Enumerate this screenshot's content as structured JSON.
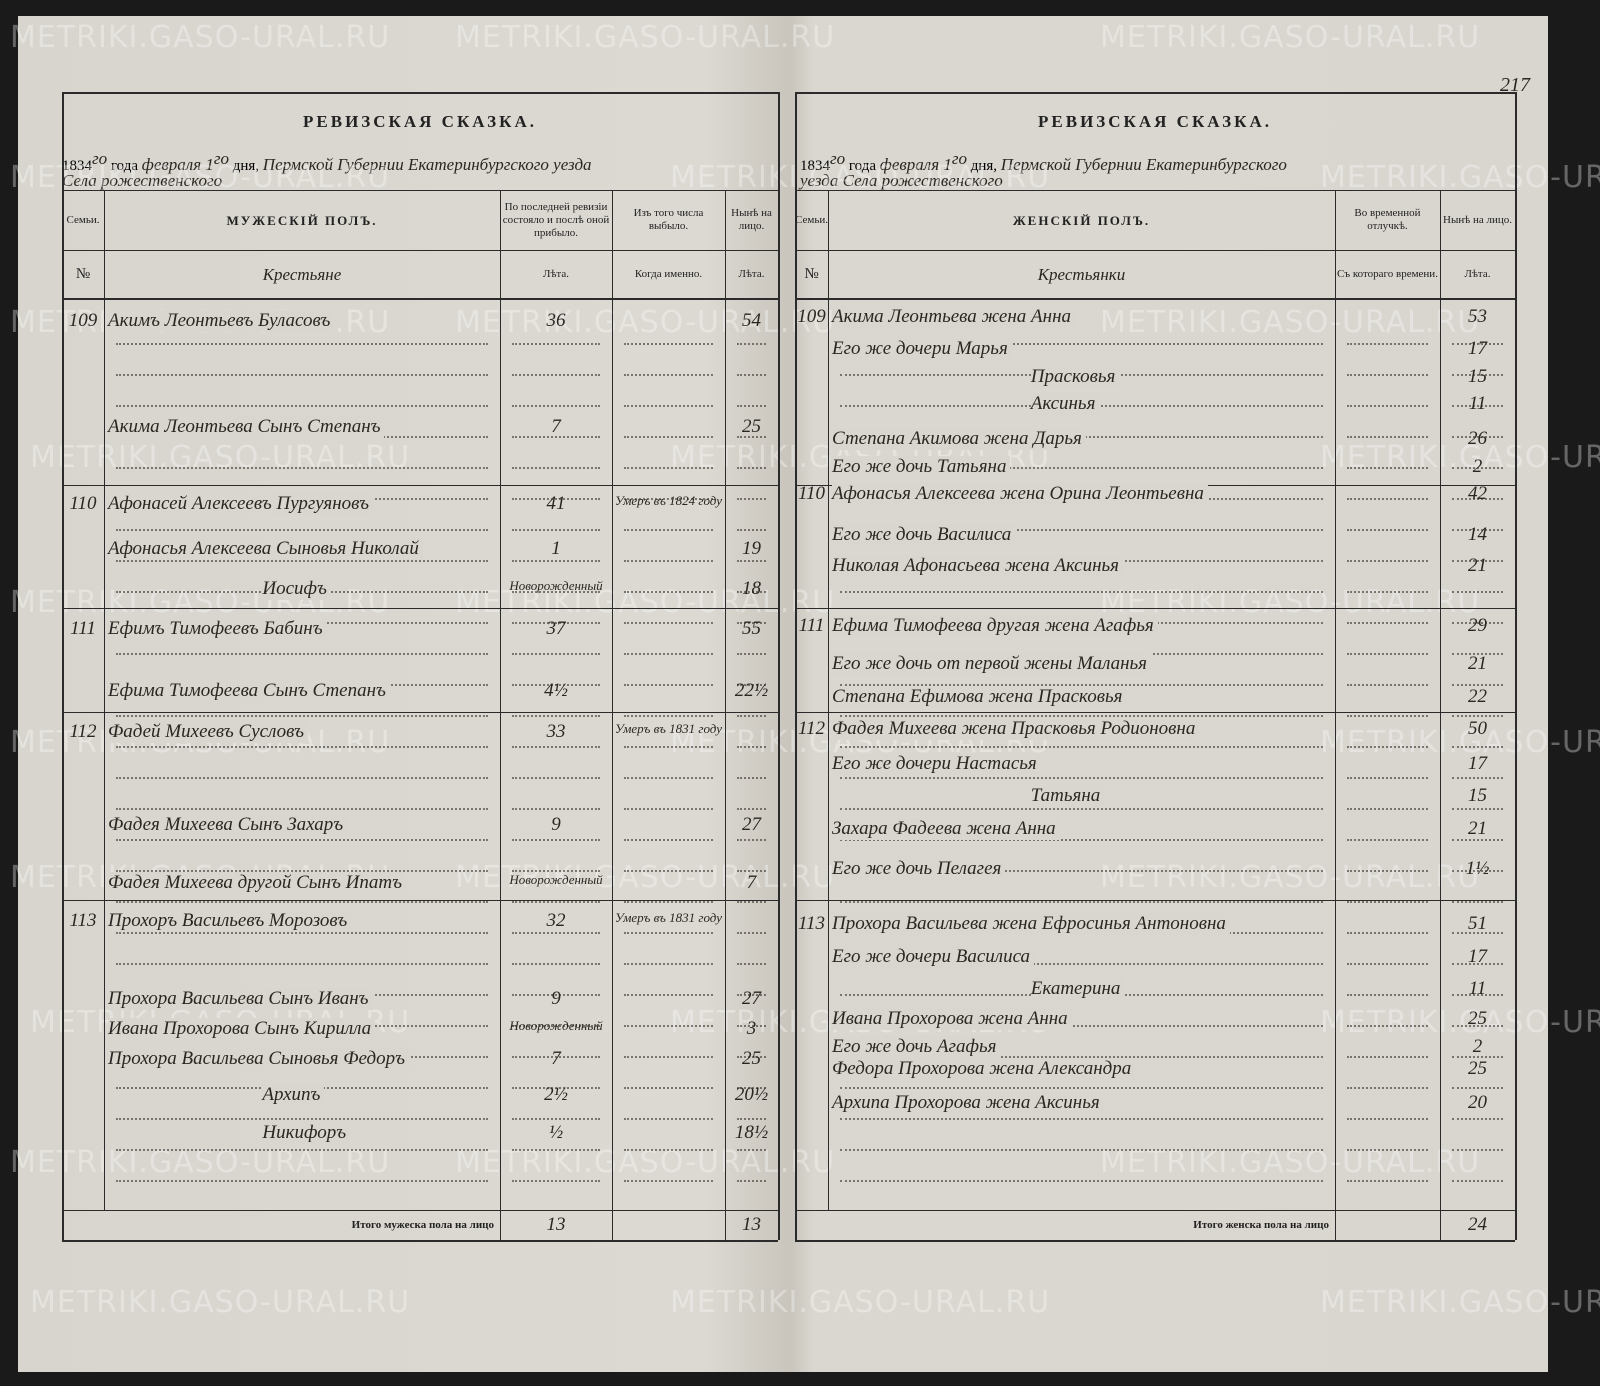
{
  "watermark": "METRIKI.GASO-URAL.RU",
  "page_number": "217",
  "left": {
    "title": "РЕВИЗСКАЯ СКАЗКА.",
    "date_line": [
      "1834",
      "го",
      "года",
      "февраля 1",
      "го",
      "дня,",
      "Пермской Губернии Екатеринбургского уезда"
    ],
    "place_line": "Села рожественского",
    "columns": [
      "Семьи.",
      "МУЖЕСКІЙ ПОЛЪ.",
      "По последней ревизіи состояло и послѣ оной прибыло.",
      "Изъ того числа выбыло.",
      "Нынѣ на лицо."
    ],
    "subcolumns": [
      "№",
      "Крестьяне",
      "Лѣта.",
      "Когда именно.",
      "Лѣта."
    ],
    "rows": [
      {
        "family": "109",
        "name": "Акимъ Леонтьевъ Буласовъ",
        "age_last": "36",
        "age_now": "54"
      },
      {
        "name": "Акима Леонтьева Сынъ Степанъ",
        "age_last": "7",
        "age_now": "25"
      },
      {
        "family": "110",
        "name": "Афонасей Алексеевъ Пургуяновъ",
        "age_last": "41",
        "left_when": "Умеръ въ 1824 году"
      },
      {
        "name": "Афонасья Алексеева Сыновья Николай",
        "age_last": "1",
        "age_now": "19"
      },
      {
        "name": "Иосифъ",
        "age_last": "Новорожденный",
        "age_now": "18"
      },
      {
        "family": "111",
        "name": "Ефимъ Тимофеевъ Бабинъ",
        "age_last": "37",
        "age_now": "55"
      },
      {
        "name": "Ефима Тимофеева Сынъ Степанъ",
        "age_last": "4½",
        "age_now": "22½"
      },
      {
        "family": "112",
        "name": "Фадей Михеевъ Сусловъ",
        "age_last": "33",
        "left_when": "Умеръ въ 1831 году"
      },
      {
        "name": "Фадея Михеева Сынъ Захаръ",
        "age_last": "9",
        "age_now": "27"
      },
      {
        "name": "Фадея Михеева другой Сынъ Ипатъ",
        "age_last": "Новорожденный",
        "age_now": "7"
      },
      {
        "family": "113",
        "name": "Прохоръ Васильевъ Морозовъ",
        "age_last": "32",
        "left_when": "Умеръ въ 1831 году"
      },
      {
        "name": "Прохора Васильева Сынъ Иванъ",
        "age_last": "9",
        "age_now": "27"
      },
      {
        "name": "Ивана Прохорова Сынъ Кирилла",
        "age_last": "Новорожденный",
        "age_now": "3"
      },
      {
        "name": "Прохора Васильева Сыновья Федоръ",
        "age_last": "7",
        "age_now": "25"
      },
      {
        "name": "Архипъ",
        "age_last": "2½",
        "age_now": "20½"
      },
      {
        "name": "Никифоръ",
        "age_last": "½",
        "age_now": "18½"
      }
    ],
    "total_label": "Итого мужеска пола на лицо",
    "total_last": "13",
    "total_now": "13"
  },
  "right": {
    "title": "РЕВИЗСКАЯ СКАЗКА.",
    "date_line": [
      "1834",
      "го",
      "года",
      "февраля 1",
      "го",
      "дня,",
      "Пермской Губернии Екатеринбургского"
    ],
    "place_line": "уезда Села рожественского",
    "columns": [
      "Семьи.",
      "ЖЕНСКІЙ ПОЛЪ.",
      "Во временной отлучкѣ.",
      "Нынѣ на лицо."
    ],
    "subcolumns": [
      "№",
      "Крестьянки",
      "Съ котораго времени.",
      "Лѣта."
    ],
    "rows": [
      {
        "family": "109",
        "name": "Акима Леонтьева жена Анна",
        "age_now": "53"
      },
      {
        "name": "Его же дочери Марья",
        "age_now": "17"
      },
      {
        "name": "Прасковья",
        "age_now": "15"
      },
      {
        "name": "Аксинья",
        "age_now": "11"
      },
      {
        "name": "Степана Акимова жена Дарья",
        "age_now": "26"
      },
      {
        "name": "Его же дочь Татьяна",
        "age_now": "2"
      },
      {
        "family": "110",
        "name": "Афонасья Алексеева жена Орина Леонтьевна",
        "age_now": "42"
      },
      {
        "name": "Его же дочь Василиса",
        "age_now": "14"
      },
      {
        "name": "Николая Афонасьева жена Аксинья",
        "age_now": "21"
      },
      {
        "family": "111",
        "name": "Ефима Тимофеева другая жена Агафья",
        "age_now": "29"
      },
      {
        "name": "Его же дочь от первой жены Маланья",
        "age_now": "21"
      },
      {
        "name": "Степана Ефимова жена Прасковья",
        "age_now": "22"
      },
      {
        "family": "112",
        "name": "Фадея Михеева жена Прасковья Родионовна",
        "age_now": "50"
      },
      {
        "name": "Его же дочери Настасья",
        "age_now": "17"
      },
      {
        "name": "Татьяна",
        "age_now": "15"
      },
      {
        "name": "Захара Фадеева жена Анна",
        "age_now": "21"
      },
      {
        "name": "Его же дочь Пелагея",
        "age_now": "1½"
      },
      {
        "family": "113",
        "name": "Прохора Васильева жена Ефросинья Антоновна",
        "age_now": "51"
      },
      {
        "name": "Его же дочери Василиса",
        "age_now": "17"
      },
      {
        "name": "Екатерина",
        "age_now": "11"
      },
      {
        "name": "Ивана Прохорова жена Анна",
        "age_now": "25"
      },
      {
        "name": "Его же дочь Агафья",
        "age_now": "2"
      },
      {
        "name": "Федора Прохорова жена Александра",
        "age_now": "25"
      },
      {
        "name": "Архипа Прохорова жена Аксинья",
        "age_now": "20"
      }
    ],
    "total_label": "Итого женска пола на лицо",
    "total_now": "24"
  }
}
